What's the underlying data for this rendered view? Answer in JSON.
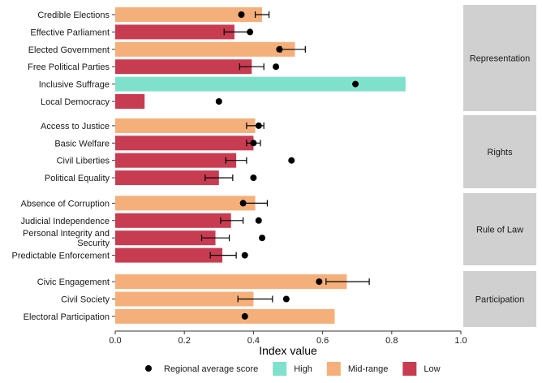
{
  "chart_data": {
    "type": "bar",
    "orientation": "horizontal",
    "xlabel": "Index value",
    "ylabel": "",
    "xlim": [
      0,
      1.0
    ],
    "x_ticks": [
      {
        "value": 0.0,
        "label": "0.0"
      },
      {
        "value": 0.2,
        "label": "0.2"
      },
      {
        "value": 0.4,
        "label": "0.4"
      },
      {
        "value": 0.6,
        "label": "0.6"
      },
      {
        "value": 0.8,
        "label": "0.8"
      },
      {
        "value": 1.0,
        "label": "1.0"
      }
    ],
    "grid": false,
    "legend_position": "bottom",
    "colors": {
      "High": "#7fe1cc",
      "Mid-range": "#f5af7a",
      "Low": "#c83c52",
      "point": "#000000",
      "strip": "#d0d0d0",
      "errorbar": "#000000"
    },
    "legend": [
      {
        "kind": "point",
        "label": "Regional average score"
      },
      {
        "kind": "category",
        "category": "High",
        "label": "High"
      },
      {
        "kind": "category",
        "category": "Mid-range",
        "label": "Mid-range"
      },
      {
        "kind": "category",
        "category": "Low",
        "label": "Low"
      }
    ],
    "panels": [
      {
        "label": "Representation",
        "rows": [
          {
            "label": "Credible Elections",
            "value": 0.425,
            "category": "Mid-range",
            "err_low": 0.405,
            "err_high": 0.445,
            "regional": 0.365
          },
          {
            "label": "Effective Parliament",
            "value": 0.345,
            "category": "Low",
            "err_low": 0.315,
            "err_high": 0.39,
            "regional": 0.39
          },
          {
            "label": "Elected Government",
            "value": 0.52,
            "category": "Mid-range",
            "err_low": 0.48,
            "err_high": 0.55,
            "regional": 0.475
          },
          {
            "label": "Free Political Parties",
            "value": 0.395,
            "category": "Low",
            "err_low": 0.36,
            "err_high": 0.43,
            "regional": 0.465
          },
          {
            "label": "Inclusive Suffrage",
            "value": 0.84,
            "category": "High",
            "regional": 0.695
          },
          {
            "label": "Local Democracy",
            "value": 0.085,
            "category": "Low",
            "regional": 0.3
          }
        ]
      },
      {
        "label": "Rights",
        "rows": [
          {
            "label": "Access to Justice",
            "value": 0.405,
            "category": "Mid-range",
            "err_low": 0.38,
            "err_high": 0.43,
            "regional": 0.415
          },
          {
            "label": "Basic Welfare",
            "value": 0.4,
            "category": "Low",
            "err_low": 0.38,
            "err_high": 0.42,
            "regional": 0.4
          },
          {
            "label": "Civil Liberties",
            "value": 0.35,
            "category": "Low",
            "err_low": 0.32,
            "err_high": 0.38,
            "regional": 0.51
          },
          {
            "label": "Political Equality",
            "value": 0.3,
            "category": "Low",
            "err_low": 0.26,
            "err_high": 0.34,
            "regional": 0.4
          }
        ]
      },
      {
        "label": "Rule of Law",
        "rows": [
          {
            "label": "Absence of Corruption",
            "value": 0.405,
            "category": "Mid-range",
            "err_low": 0.37,
            "err_high": 0.44,
            "regional": 0.37
          },
          {
            "label": "Judicial Independence",
            "value": 0.335,
            "category": "Low",
            "err_low": 0.305,
            "err_high": 0.37,
            "regional": 0.415
          },
          {
            "label": "Personal Integrity and Security",
            "value": 0.29,
            "category": "Low",
            "err_low": 0.25,
            "err_high": 0.33,
            "regional": 0.425
          },
          {
            "label": "Predictable Enforcement",
            "value": 0.31,
            "category": "Low",
            "err_low": 0.275,
            "err_high": 0.35,
            "regional": 0.375
          }
        ]
      },
      {
        "label": "Participation",
        "rows": [
          {
            "label": "Civic Engagement",
            "value": 0.67,
            "category": "Mid-range",
            "err_low": 0.61,
            "err_high": 0.735,
            "regional": 0.59
          },
          {
            "label": "Civil Society",
            "value": 0.4,
            "category": "Mid-range",
            "err_low": 0.355,
            "err_high": 0.455,
            "regional": 0.495
          },
          {
            "label": "Electoral Participation",
            "value": 0.635,
            "category": "Mid-range",
            "regional": 0.375
          }
        ]
      }
    ]
  }
}
